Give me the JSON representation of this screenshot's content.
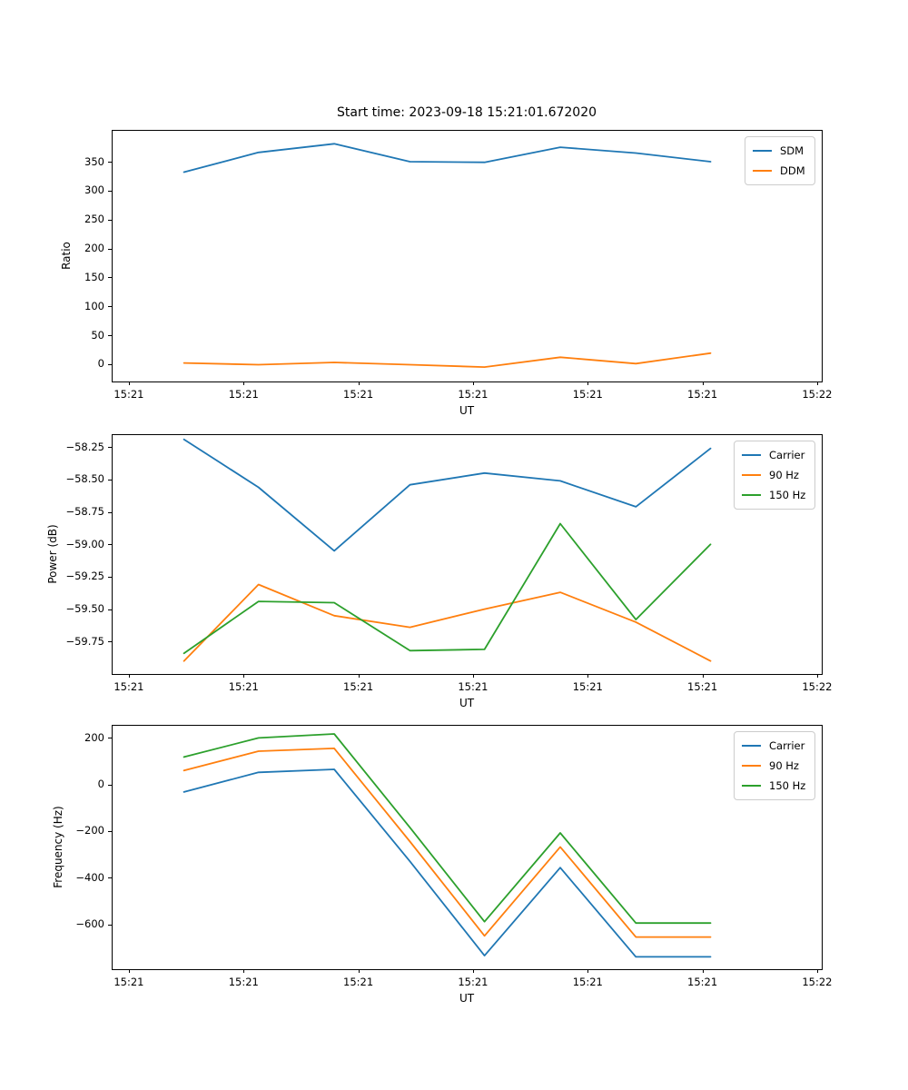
{
  "figure": {
    "title": "Start time: 2023-09-18 15:21:01.672020"
  },
  "colors": {
    "blue": "#1f77b4",
    "orange": "#ff7f0e",
    "green": "#2ca02c",
    "spine": "#000000",
    "legend_border": "#cccccc"
  },
  "chart_data": [
    {
      "type": "line",
      "title": "Start time: 2023-09-18 15:21:01.672020",
      "xlabel": "UT",
      "ylabel": "Ratio",
      "x_seconds": [
        4.8,
        11.3,
        17.9,
        24.5,
        31.0,
        37.6,
        44.2,
        50.7
      ],
      "xlim_seconds": [
        -1.5,
        60.4
      ],
      "xticks_seconds": [
        0,
        10,
        20,
        30,
        40,
        50,
        60
      ],
      "xtick_labels": [
        "15:21",
        "15:21",
        "15:21",
        "15:21",
        "15:21",
        "15:21",
        "15:22"
      ],
      "ylim": [
        -30,
        405
      ],
      "yticks": [
        0,
        50,
        100,
        150,
        200,
        250,
        300,
        350
      ],
      "ytick_labels": [
        "0",
        "50",
        "100",
        "150",
        "200",
        "250",
        "300",
        "350"
      ],
      "grid": false,
      "legend_position": "upper right",
      "series": [
        {
          "name": "SDM",
          "color": "#1f77b4",
          "values": [
            332,
            366,
            381,
            350,
            349,
            375,
            365,
            350
          ]
        },
        {
          "name": "DDM",
          "color": "#ff7f0e",
          "values": [
            2,
            -1,
            3,
            -1,
            -5,
            12,
            1,
            19
          ]
        }
      ]
    },
    {
      "type": "line",
      "title": "",
      "xlabel": "UT",
      "ylabel": "Power (dB)",
      "x_seconds": [
        4.8,
        11.3,
        17.9,
        24.5,
        31.0,
        37.6,
        44.2,
        50.7
      ],
      "xlim_seconds": [
        -1.5,
        60.4
      ],
      "xticks_seconds": [
        0,
        10,
        20,
        30,
        40,
        50,
        60
      ],
      "xtick_labels": [
        "15:21",
        "15:21",
        "15:21",
        "15:21",
        "15:21",
        "15:21",
        "15:22"
      ],
      "ylim": [
        -60.0,
        -58.15
      ],
      "yticks": [
        -58.25,
        -58.5,
        -58.75,
        -59.0,
        -59.25,
        -59.5,
        -59.75
      ],
      "ytick_labels": [
        "−58.25",
        "−58.50",
        "−58.75",
        "−59.00",
        "−59.25",
        "−59.50",
        "−59.75"
      ],
      "grid": false,
      "legend_position": "upper right",
      "series": [
        {
          "name": "Carrier",
          "color": "#1f77b4",
          "values": [
            -58.19,
            -58.56,
            -59.05,
            -58.54,
            -58.45,
            -58.51,
            -58.71,
            -58.26
          ]
        },
        {
          "name": "90 Hz",
          "color": "#ff7f0e",
          "values": [
            -59.9,
            -59.31,
            -59.55,
            -59.64,
            -59.5,
            -59.37,
            -59.6,
            -59.9
          ]
        },
        {
          "name": "150 Hz",
          "color": "#2ca02c",
          "values": [
            -59.84,
            -59.44,
            -59.45,
            -59.82,
            -59.81,
            -58.84,
            -59.58,
            -59.0
          ]
        }
      ]
    },
    {
      "type": "line",
      "title": "",
      "xlabel": "UT",
      "ylabel": "Frequency (Hz)",
      "x_seconds": [
        4.8,
        11.3,
        17.9,
        24.5,
        31.0,
        37.6,
        44.2,
        50.7
      ],
      "xlim_seconds": [
        -1.5,
        60.4
      ],
      "xticks_seconds": [
        0,
        10,
        20,
        30,
        40,
        50,
        60
      ],
      "xtick_labels": [
        "15:21",
        "15:21",
        "15:21",
        "15:21",
        "15:21",
        "15:21",
        "15:22"
      ],
      "ylim": [
        -793,
        256
      ],
      "yticks": [
        200,
        0,
        -200,
        -400,
        -600
      ],
      "ytick_labels": [
        "200",
        "0",
        "−200",
        "−400",
        "−600"
      ],
      "grid": false,
      "legend_position": "upper right",
      "series": [
        {
          "name": "Carrier",
          "color": "#1f77b4",
          "values": [
            -32,
            52,
            65,
            -330,
            -735,
            -357,
            -740,
            -740
          ]
        },
        {
          "name": "90 Hz",
          "color": "#ff7f0e",
          "values": [
            60,
            143,
            155,
            -245,
            -650,
            -268,
            -655,
            -655
          ]
        },
        {
          "name": "150 Hz",
          "color": "#2ca02c",
          "values": [
            118,
            200,
            217,
            -185,
            -589,
            -208,
            -595,
            -595
          ]
        }
      ]
    }
  ]
}
